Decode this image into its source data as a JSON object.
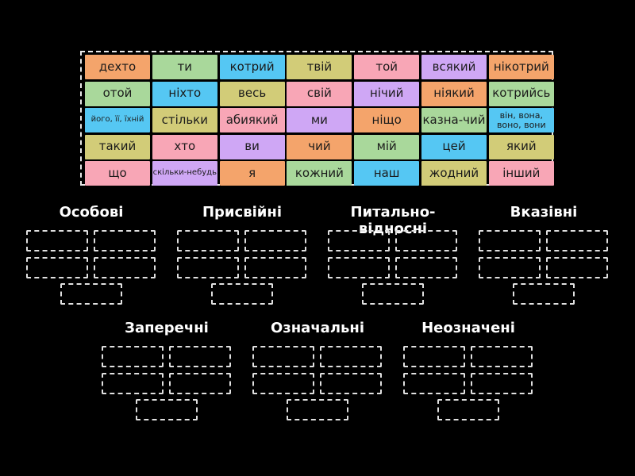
{
  "bank": {
    "colors": [
      "#f4a46b",
      "#a9d89b",
      "#55c7f3",
      "#d2cc78",
      "#f8a6b6",
      "#cfa7f5"
    ],
    "rows": [
      [
        {
          "text": "дехто",
          "color": "#f4a46b"
        },
        {
          "text": "ти",
          "color": "#a9d89b"
        },
        {
          "text": "котрий",
          "color": "#55c7f3"
        },
        {
          "text": "твій",
          "color": "#d2cc78"
        },
        {
          "text": "той",
          "color": "#f8a6b6"
        },
        {
          "text": "всякий",
          "color": "#cfa7f5"
        },
        {
          "text": "нікотрий",
          "color": "#f4a46b"
        }
      ],
      [
        {
          "text": "отой",
          "color": "#a9d89b"
        },
        {
          "text": "ніхто",
          "color": "#55c7f3"
        },
        {
          "text": "весь",
          "color": "#d2cc78"
        },
        {
          "text": "свій",
          "color": "#f8a6b6"
        },
        {
          "text": "нічий",
          "color": "#cfa7f5"
        },
        {
          "text": "ніякий",
          "color": "#f4a46b"
        },
        {
          "text": "котрийсь",
          "color": "#a9d89b"
        }
      ],
      [
        {
          "text": "його, її, їхній",
          "color": "#55c7f3",
          "size": "xs"
        },
        {
          "text": "стільки",
          "color": "#d2cc78"
        },
        {
          "text": "абиякий",
          "color": "#f8a6b6"
        },
        {
          "text": "ми",
          "color": "#cfa7f5"
        },
        {
          "text": "ніщо",
          "color": "#f4a46b"
        },
        {
          "text": "казна-чий",
          "color": "#a9d89b"
        },
        {
          "text": "він, вона, воно, вони",
          "color": "#55c7f3",
          "size": "two"
        }
      ],
      [
        {
          "text": "такий",
          "color": "#d2cc78"
        },
        {
          "text": "хто",
          "color": "#f8a6b6"
        },
        {
          "text": "ви",
          "color": "#cfa7f5"
        },
        {
          "text": "чий",
          "color": "#f4a46b"
        },
        {
          "text": "мій",
          "color": "#a9d89b"
        },
        {
          "text": "цей",
          "color": "#55c7f3"
        },
        {
          "text": "який",
          "color": "#d2cc78"
        }
      ],
      [
        {
          "text": "що",
          "color": "#f8a6b6"
        },
        {
          "text": "скільки-небудь",
          "color": "#cfa7f5",
          "size": "xs"
        },
        {
          "text": "я",
          "color": "#f4a46b"
        },
        {
          "text": "кожний",
          "color": "#a9d89b"
        },
        {
          "text": "наш",
          "color": "#55c7f3"
        },
        {
          "text": "жодний",
          "color": "#d2cc78"
        },
        {
          "text": "інший",
          "color": "#f8a6b6"
        }
      ]
    ]
  },
  "groups": [
    {
      "title": "Особові",
      "slots": 5
    },
    {
      "title": "Присвійні",
      "slots": 5
    },
    {
      "title": "Питально-відносні",
      "slots": 5
    },
    {
      "title": "Вказівні",
      "slots": 5
    },
    {
      "title": "Заперечні",
      "slots": 5
    },
    {
      "title": "Означальні",
      "slots": 5
    },
    {
      "title": "Неозначені",
      "slots": 5
    }
  ]
}
